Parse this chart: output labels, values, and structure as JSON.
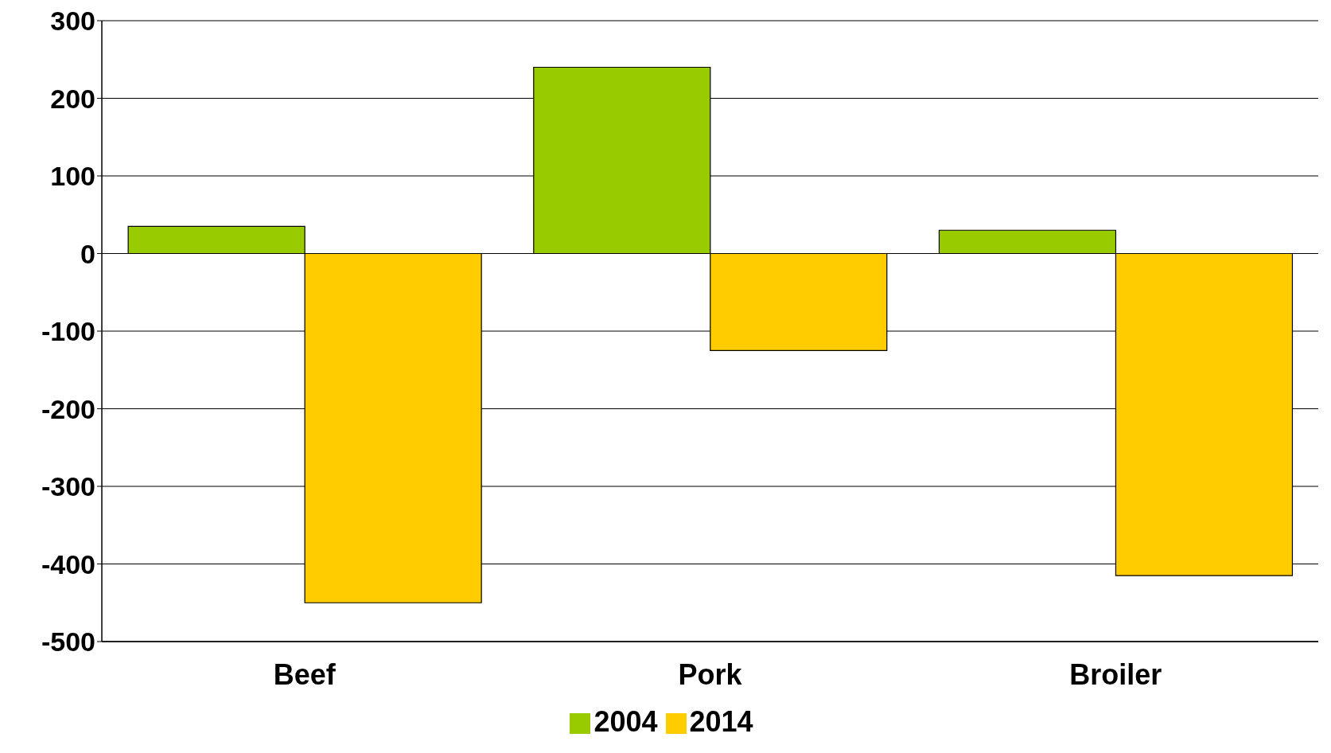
{
  "chart_data": {
    "type": "bar",
    "categories": [
      "Beef",
      "Pork",
      "Broiler"
    ],
    "series": [
      {
        "name": "2004",
        "color": "#99cc00",
        "values": [
          35,
          240,
          30
        ]
      },
      {
        "name": "2014",
        "color": "#ffcc00",
        "values": [
          -450,
          -125,
          -415
        ]
      }
    ],
    "ylim": [
      -500,
      300
    ],
    "yticks": [
      -500,
      -400,
      -300,
      -200,
      -100,
      0,
      100,
      200,
      300
    ],
    "grid": "y",
    "legend": "bottom"
  }
}
